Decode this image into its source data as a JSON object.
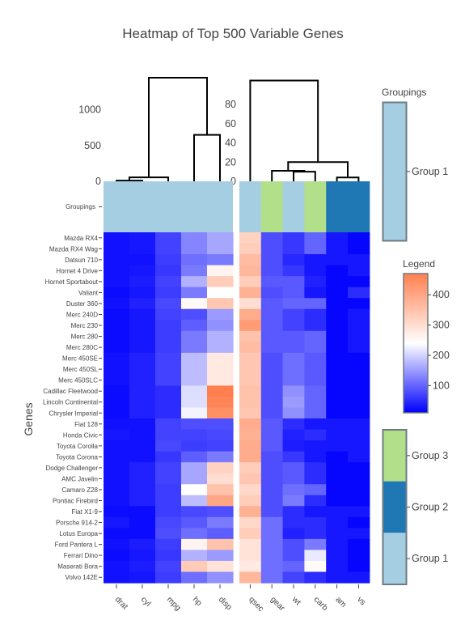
{
  "chart_data": {
    "type": "heatmap",
    "title": "Heatmap of Top 500 Variable Genes",
    "ylabel": "Genes",
    "rows": [
      "Mazda RX4",
      "Mazda RX4 Wag",
      "Datsun 710",
      "Hornet 4 Drive",
      "Hornet Sportabout",
      "Valiant",
      "Duster 360",
      "Merc 240D",
      "Merc 230",
      "Merc 280",
      "Merc 280C",
      "Merc 450SE",
      "Merc 450SL",
      "Merc 450SLC",
      "Cadillac Fleetwood",
      "Lincoln Continental",
      "Chrysler Imperial",
      "Fiat 128",
      "Honda Civic",
      "Toyota Corolla",
      "Toyota Corona",
      "Dodge Challenger",
      "AMC Javelin",
      "Camaro Z28",
      "Pontiac Firebird",
      "Fiat X1-9",
      "Porsche 914-2",
      "Lotus Europa",
      "Ford Pantera L",
      "Ferrari Dino",
      "Maserati Bora",
      "Volvo 142E"
    ],
    "columns_left": [
      "drat",
      "cyl",
      "mpg",
      "hp",
      "disp"
    ],
    "columns_right": [
      "qsec",
      "gear",
      "wt",
      "carb",
      "am",
      "vs"
    ],
    "values_left": [
      [
        25,
        30,
        70,
        130,
        160
      ],
      [
        25,
        30,
        70,
        130,
        160
      ],
      [
        25,
        25,
        65,
        110,
        120
      ],
      [
        25,
        30,
        60,
        120,
        260
      ],
      [
        25,
        35,
        70,
        170,
        330
      ],
      [
        20,
        30,
        65,
        120,
        240
      ],
      [
        25,
        40,
        75,
        250,
        340
      ],
      [
        20,
        30,
        70,
        80,
        150
      ],
      [
        20,
        30,
        65,
        95,
        140
      ],
      [
        20,
        30,
        65,
        120,
        170
      ],
      [
        20,
        30,
        65,
        120,
        170
      ],
      [
        25,
        40,
        70,
        180,
        280
      ],
      [
        25,
        40,
        70,
        180,
        280
      ],
      [
        25,
        40,
        70,
        180,
        280
      ],
      [
        20,
        40,
        50,
        210,
        470
      ],
      [
        20,
        40,
        50,
        210,
        460
      ],
      [
        20,
        40,
        50,
        230,
        440
      ],
      [
        25,
        25,
        70,
        80,
        80
      ],
      [
        30,
        25,
        70,
        70,
        75
      ],
      [
        25,
        25,
        75,
        65,
        70
      ],
      [
        25,
        25,
        60,
        95,
        120
      ],
      [
        25,
        40,
        70,
        160,
        320
      ],
      [
        25,
        40,
        70,
        160,
        300
      ],
      [
        25,
        40,
        65,
        240,
        350
      ],
      [
        25,
        40,
        65,
        180,
        400
      ],
      [
        20,
        20,
        65,
        75,
        80
      ],
      [
        30,
        20,
        75,
        90,
        120
      ],
      [
        20,
        20,
        80,
        110,
        95
      ],
      [
        25,
        35,
        65,
        260,
        350
      ],
      [
        20,
        30,
        60,
        170,
        150
      ],
      [
        25,
        35,
        70,
        335,
        290
      ],
      [
        25,
        30,
        65,
        110,
        140
      ]
    ],
    "values_right": [
      [
        320,
        80,
        60,
        100,
        30,
        15
      ],
      [
        330,
        80,
        60,
        100,
        30,
        15
      ],
      [
        360,
        80,
        45,
        30,
        30,
        30
      ],
      [
        370,
        80,
        60,
        30,
        15,
        30
      ],
      [
        330,
        90,
        90,
        40,
        15,
        15
      ],
      [
        380,
        80,
        90,
        30,
        15,
        50
      ],
      [
        300,
        90,
        100,
        100,
        15,
        15
      ],
      [
        390,
        90,
        70,
        50,
        15,
        30
      ],
      [
        420,
        90,
        70,
        50,
        15,
        30
      ],
      [
        350,
        90,
        90,
        100,
        15,
        30
      ],
      [
        360,
        90,
        90,
        100,
        15,
        30
      ],
      [
        340,
        80,
        110,
        90,
        15,
        15
      ],
      [
        340,
        80,
        110,
        90,
        15,
        15
      ],
      [
        340,
        80,
        110,
        90,
        15,
        15
      ],
      [
        350,
        80,
        140,
        100,
        15,
        15
      ],
      [
        350,
        80,
        150,
        100,
        15,
        15
      ],
      [
        340,
        80,
        140,
        100,
        15,
        15
      ],
      [
        390,
        90,
        50,
        30,
        30,
        30
      ],
      [
        380,
        90,
        40,
        50,
        30,
        30
      ],
      [
        390,
        90,
        35,
        30,
        30,
        30
      ],
      [
        390,
        80,
        60,
        30,
        15,
        30
      ],
      [
        330,
        80,
        90,
        50,
        15,
        15
      ],
      [
        340,
        80,
        90,
        50,
        15,
        15
      ],
      [
        310,
        80,
        110,
        100,
        15,
        15
      ],
      [
        330,
        80,
        120,
        50,
        15,
        15
      ],
      [
        380,
        80,
        50,
        30,
        30,
        30
      ],
      [
        310,
        110,
        50,
        50,
        30,
        15
      ],
      [
        330,
        110,
        40,
        50,
        30,
        30
      ],
      [
        290,
        110,
        80,
        120,
        30,
        15
      ],
      [
        290,
        110,
        80,
        220,
        30,
        15
      ],
      [
        280,
        110,
        100,
        250,
        30,
        15
      ],
      [
        370,
        110,
        70,
        50,
        30,
        30
      ]
    ],
    "colorbar": {
      "title": "Legend",
      "ticks": [
        100,
        200,
        300,
        400
      ],
      "range": [
        10,
        470
      ],
      "colors": [
        "#0000ff",
        "#ffffff",
        "#ff7f4f"
      ]
    },
    "col_groups_left": [
      1,
      1,
      1,
      1,
      1
    ],
    "col_groups_right": [
      1,
      3,
      1,
      3,
      2,
      2
    ],
    "groupings_label": "Groupings",
    "row_groupings_legend": {
      "title": "Groupings",
      "items": [
        "Group 1"
      ]
    },
    "col_groupings_legend": {
      "items": [
        "Group 3",
        "Group 2",
        "Group 1"
      ]
    },
    "group_colors": {
      "Group 1": "#a6cee3",
      "Group 2": "#1f78b4",
      "Group 3": "#b2df8a"
    },
    "dendrogram_left_yticks": [
      0,
      500,
      1000
    ],
    "dendrogram_left_yrange": [
      0,
      1450
    ],
    "dendrogram_right_yticks": [
      0,
      20,
      40,
      60,
      80
    ],
    "dendrogram_right_yrange": [
      0,
      108
    ],
    "dendro_left_links": [
      {
        "a": 0,
        "b": 1,
        "h": 10,
        "rep": 0.5
      },
      {
        "a": 0.5,
        "b": 2,
        "h": 55,
        "rep": 1.25
      },
      {
        "a": 3,
        "b": 4,
        "h": 650,
        "rep": 3.5
      },
      {
        "a": 1.25,
        "b": 3.5,
        "h": 1450,
        "rep": 2.375
      }
    ],
    "dendro_right_links": [
      {
        "a": 2,
        "b": 3,
        "h": 10,
        "rep": 2.5
      },
      {
        "a": 1,
        "b": 2.5,
        "h": 11,
        "rep": 1.75
      },
      {
        "a": 4,
        "b": 5,
        "h": 4,
        "rep": 4.5
      },
      {
        "a": 1.75,
        "b": 4.5,
        "h": 20,
        "rep": 3.125
      },
      {
        "a": 0,
        "b": 3.125,
        "h": 105,
        "rep": 1.5625
      }
    ]
  }
}
